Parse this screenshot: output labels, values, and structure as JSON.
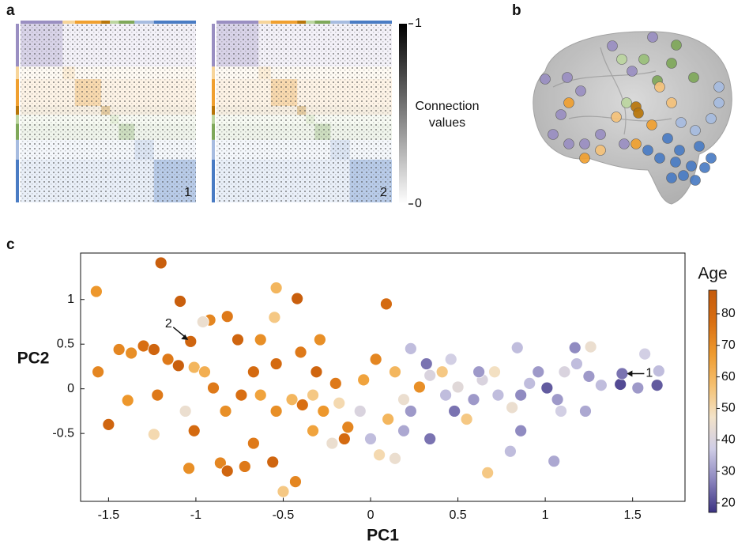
{
  "panel_labels": [
    "a",
    "b",
    "c"
  ],
  "chart_data": [
    {
      "type": "heatmap",
      "matrix_labels": [
        "1",
        "2"
      ],
      "colorbar_label": "Connection values",
      "clim": [
        0,
        1
      ],
      "colorbar_ticks": [
        1,
        0
      ],
      "colormap": [
        "#ffffff",
        "#000000"
      ]
    },
    {
      "type": "scatter",
      "xlabel": "PC1",
      "ylabel": "PC2",
      "xlim": [
        -1.66,
        1.8
      ],
      "ylim": [
        -1.26,
        1.52
      ],
      "xticks": [
        -1.5,
        -1,
        -0.5,
        0,
        0.5,
        1,
        1.5
      ],
      "yticks": [
        -0.5,
        0,
        0.5,
        1
      ],
      "colorbar_label": "Age",
      "clim": [
        17,
        87.5
      ],
      "colorbar_ticks": [
        20,
        30,
        40,
        50,
        60,
        70,
        80
      ],
      "colormap": [
        "#3b3282",
        "#8a84bd",
        "#cfcde6",
        "#f3e3c9",
        "#f5c070",
        "#ee9a2e",
        "#d96f12",
        "#c45a0c"
      ],
      "annotations": [
        {
          "text": "1",
          "x": 1.44,
          "y": 0.17
        },
        {
          "text": "2",
          "x": -1.03,
          "y": 0.53
        }
      ],
      "x": [
        -1.2,
        -1.57,
        -1.09,
        -0.54,
        -0.42,
        0.09,
        -0.55,
        -0.82,
        -0.92,
        -0.96,
        -1.03,
        -1.3,
        -1.24,
        -1.16,
        -1.1,
        -1.01,
        -1.44,
        -1.37,
        -1.56,
        -1.5,
        -1.39,
        -1.22,
        -1.06,
        -1.01,
        -1.04,
        -1.24,
        -0.86,
        -0.82,
        -0.72,
        -0.56,
        -0.43,
        -0.5,
        -0.67,
        -0.83,
        -0.74,
        -0.67,
        -0.54,
        -0.4,
        -0.29,
        -0.76,
        -0.63,
        -0.95,
        -0.9,
        -0.63,
        -0.54,
        -0.45,
        -0.33,
        -0.27,
        -0.18,
        -0.13,
        -0.06,
        -0.04,
        0.03,
        0.14,
        -0.2,
        -0.22,
        -0.33,
        0.0,
        0.05,
        0.1,
        0.19,
        0.23,
        0.28,
        0.34,
        0.32,
        0.41,
        0.43,
        0.5,
        0.48,
        0.55,
        0.59,
        0.64,
        0.71,
        0.73,
        0.81,
        0.86,
        0.91,
        0.96,
        1.01,
        1.07,
        1.11,
        1.18,
        1.17,
        1.26,
        1.25,
        1.32,
        1.09,
        1.23,
        0.86,
        1.05,
        0.8,
        0.67,
        1.43,
        1.44,
        1.57,
        1.53,
        1.64,
        1.65,
        0.84,
        0.62,
        0.46,
        0.23,
        0.19,
        0.34,
        0.14,
        -0.15,
        -0.31,
        -0.39
      ],
      "y": [
        1.41,
        1.09,
        0.98,
        1.13,
        1.01,
        0.95,
        0.8,
        0.81,
        0.77,
        0.75,
        0.53,
        0.48,
        0.44,
        0.33,
        0.26,
        0.24,
        0.44,
        0.4,
        0.19,
        -0.4,
        -0.13,
        -0.07,
        -0.25,
        -0.47,
        -0.89,
        -0.51,
        -0.83,
        -0.92,
        -0.87,
        -0.82,
        -1.04,
        -1.15,
        -0.61,
        -0.25,
        -0.07,
        0.19,
        0.28,
        0.41,
        0.55,
        0.55,
        0.55,
        0.19,
        0.01,
        -0.07,
        -0.25,
        -0.12,
        -0.07,
        -0.25,
        -0.16,
        -0.43,
        -0.25,
        0.1,
        0.33,
        0.19,
        0.06,
        -0.61,
        -0.47,
        -0.56,
        -0.74,
        -0.34,
        -0.12,
        -0.25,
        0.02,
        0.15,
        0.28,
        0.19,
        -0.07,
        0.02,
        -0.25,
        -0.34,
        -0.12,
        0.1,
        0.19,
        -0.07,
        -0.21,
        -0.07,
        0.06,
        0.19,
        0.01,
        -0.12,
        0.19,
        0.28,
        0.46,
        0.47,
        0.14,
        0.04,
        -0.25,
        -0.25,
        -0.47,
        -0.81,
        -0.7,
        -0.94,
        0.05,
        0.17,
        0.39,
        0.01,
        0.04,
        0.2,
        0.46,
        0.19,
        0.33,
        0.45,
        -0.47,
        -0.56,
        -0.78,
        -0.56,
        0.19,
        -0.18
      ],
      "age": [
        85,
        68,
        85,
        60,
        85,
        80,
        55,
        75,
        72,
        45,
        82,
        78,
        82,
        75,
        85,
        60,
        72,
        70,
        72,
        82,
        68,
        75,
        45,
        80,
        70,
        50,
        72,
        82,
        75,
        82,
        72,
        55,
        75,
        70,
        78,
        80,
        80,
        75,
        70,
        82,
        70,
        62,
        75,
        65,
        70,
        60,
        55,
        68,
        50,
        72,
        40,
        65,
        72,
        60,
        75,
        45,
        65,
        35,
        50,
        60,
        45,
        30,
        70,
        40,
        25,
        55,
        35,
        42,
        25,
        55,
        30,
        40,
        48,
        35,
        45,
        28,
        35,
        30,
        22,
        30,
        40,
        35,
        28,
        45,
        30,
        35,
        38,
        32,
        28,
        32,
        35,
        55,
        20,
        25,
        38,
        30,
        22,
        35,
        35,
        30,
        38,
        35,
        32,
        25,
        45,
        80,
        82,
        78
      ]
    }
  ]
}
